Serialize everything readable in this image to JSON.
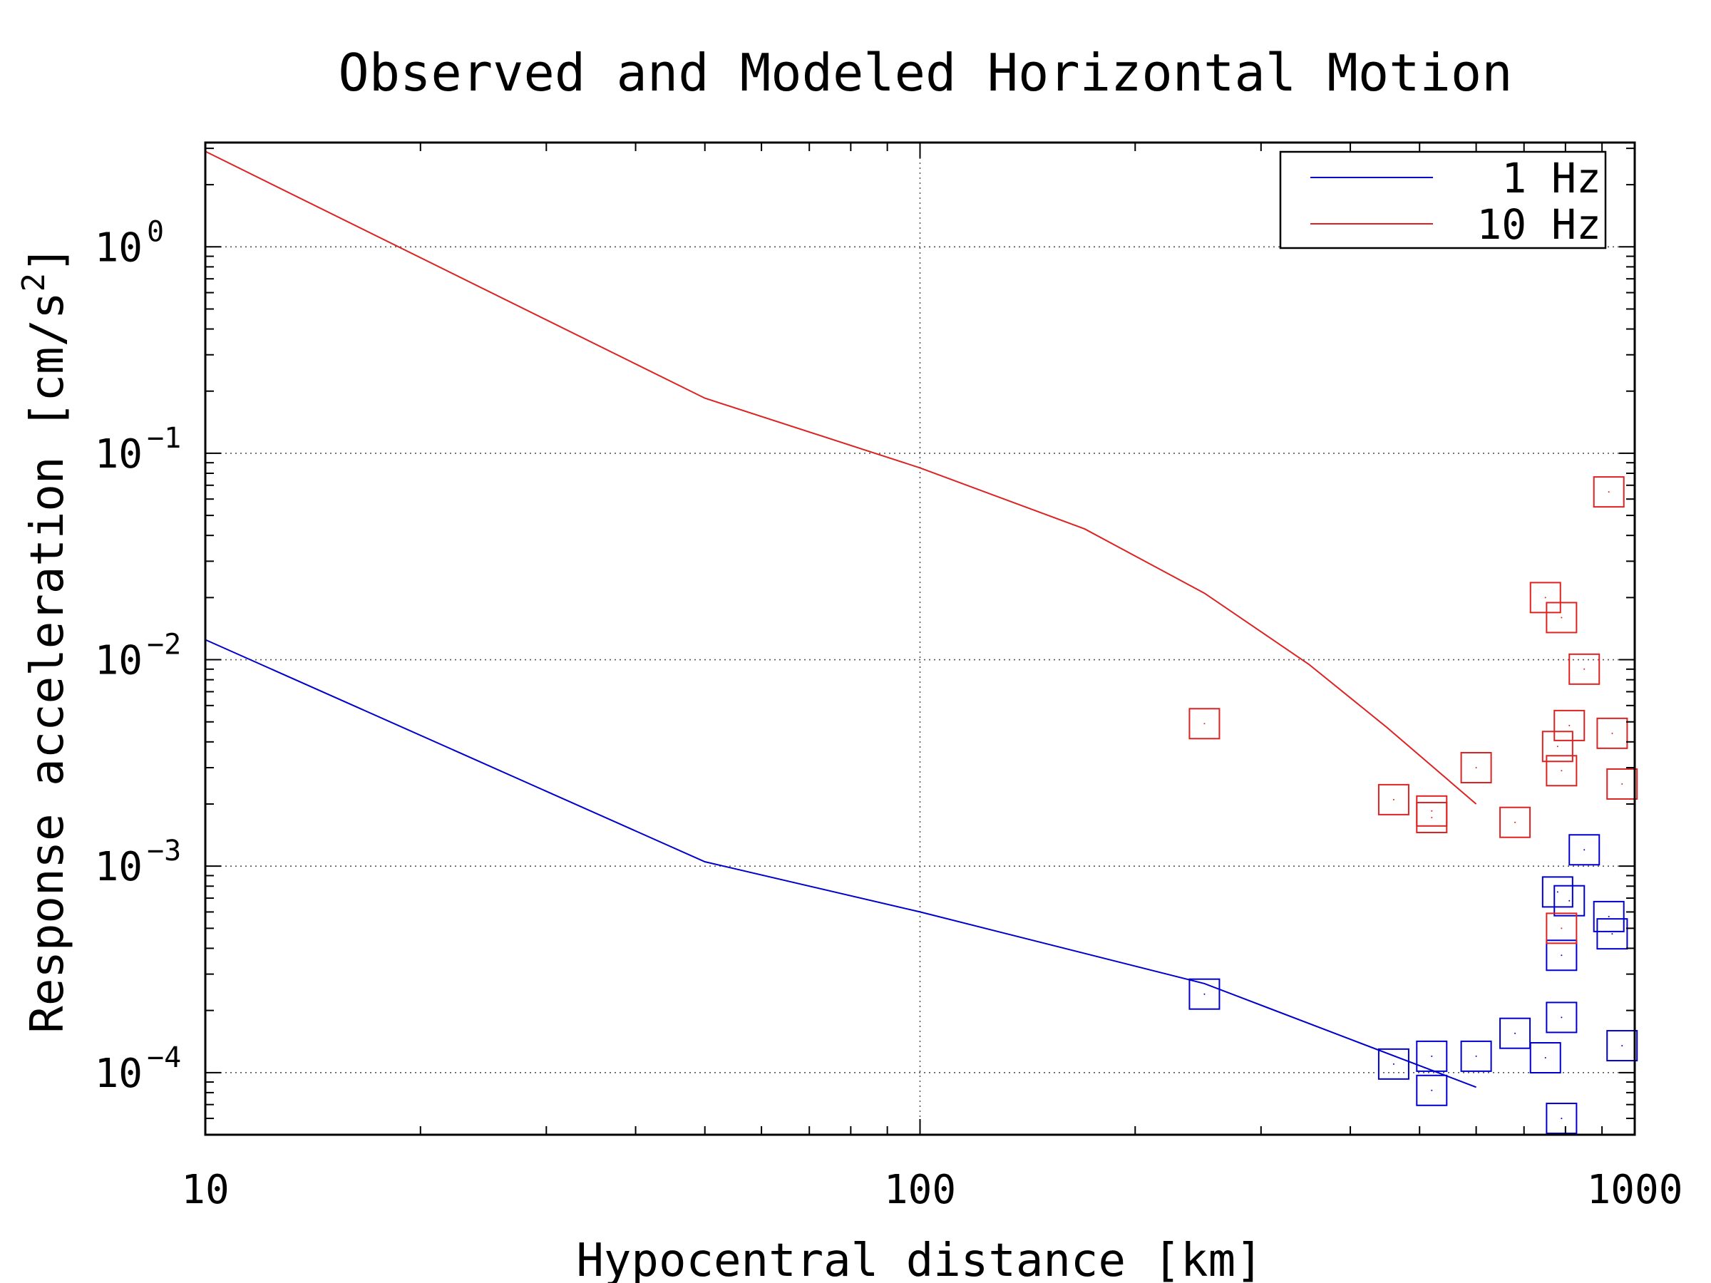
{
  "chart_data": {
    "type": "scatter",
    "title": "Observed and Modeled Horizontal Motion",
    "xlabel": "Hypocentral distance [km]",
    "ylabel": "Response acceleration [cm/s",
    "ylabel_sup": "2",
    "ylabel_end": "]",
    "xscale": "log",
    "yscale": "log",
    "xlim": [
      10,
      1000
    ],
    "ylim": [
      5e-05,
      3.2
    ],
    "x_ticks": [
      {
        "value": 10,
        "label": "10"
      },
      {
        "value": 100,
        "label": "100"
      },
      {
        "value": 1000,
        "label": "1000"
      }
    ],
    "y_ticks": [
      {
        "value": 1,
        "base": "10",
        "exp": "0"
      },
      {
        "value": 0.1,
        "base": "10",
        "exp": "−1"
      },
      {
        "value": 0.01,
        "base": "10",
        "exp": "−2"
      },
      {
        "value": 0.001,
        "base": "10",
        "exp": "−3"
      },
      {
        "value": 0.0001,
        "base": "10",
        "exp": "−4"
      }
    ],
    "grid": true,
    "legend_position": "top-right",
    "series": [
      {
        "name": "1 Hz",
        "color": "#0000cc",
        "line": [
          [
            10,
            0.0125
          ],
          [
            50,
            0.00105
          ],
          [
            100,
            0.0006
          ],
          [
            250,
            0.00027
          ],
          [
            400,
            0.000145
          ],
          [
            600,
            8.5e-05
          ]
        ],
        "points": [
          [
            250,
            0.00024
          ],
          [
            460,
            0.00011
          ],
          [
            520,
            8.2e-05
          ],
          [
            520,
            0.00012
          ],
          [
            600,
            0.00012
          ],
          [
            680,
            0.000155
          ],
          [
            750,
            0.000118
          ],
          [
            780,
            0.00075
          ],
          [
            790,
            0.00037
          ],
          [
            790,
            0.000185
          ],
          [
            790,
            6e-05
          ],
          [
            810,
            0.00068
          ],
          [
            850,
            0.0012
          ],
          [
            920,
            0.00057
          ],
          [
            930,
            0.00047
          ],
          [
            960,
            0.000135
          ]
        ]
      },
      {
        "name": "10 Hz",
        "color": "#dd2222",
        "line": [
          [
            10,
            2.9
          ],
          [
            50,
            0.185
          ],
          [
            100,
            0.085
          ],
          [
            170,
            0.043
          ],
          [
            250,
            0.021
          ],
          [
            350,
            0.0095
          ],
          [
            450,
            0.0047
          ],
          [
            600,
            0.002
          ]
        ],
        "points": [
          [
            250,
            0.0049
          ],
          [
            460,
            0.0021
          ],
          [
            520,
            0.00185
          ],
          [
            520,
            0.00172
          ],
          [
            600,
            0.003
          ],
          [
            680,
            0.00163
          ],
          [
            750,
            0.02
          ],
          [
            780,
            0.0038
          ],
          [
            790,
            0.016
          ],
          [
            790,
            0.0029
          ],
          [
            790,
            0.0005
          ],
          [
            810,
            0.0048
          ],
          [
            850,
            0.009
          ],
          [
            920,
            0.065
          ],
          [
            930,
            0.0044
          ],
          [
            960,
            0.0025
          ]
        ]
      }
    ]
  }
}
